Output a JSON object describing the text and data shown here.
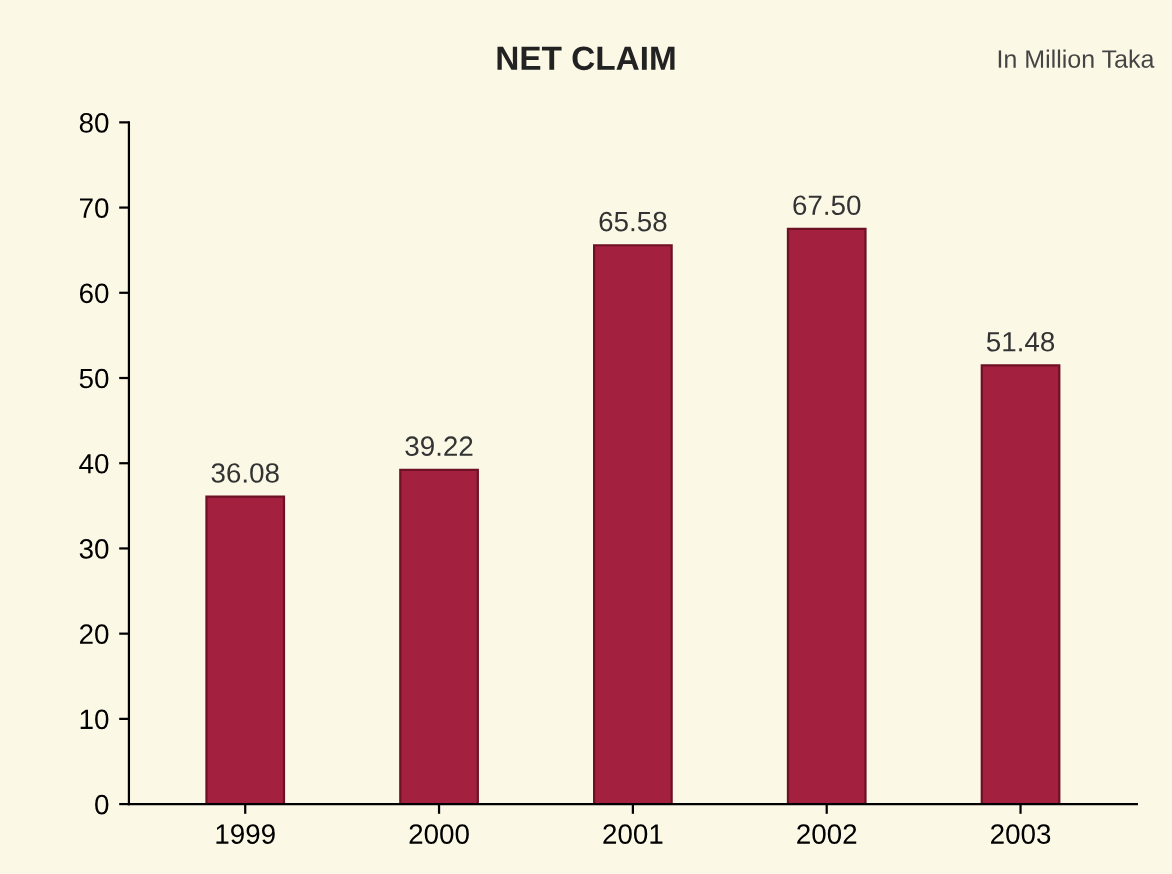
{
  "chart_data": {
    "type": "bar",
    "title": "NET CLAIM",
    "annotations": [
      "In Million Taka"
    ],
    "categories": [
      "1999",
      "2000",
      "2001",
      "2002",
      "2003"
    ],
    "values": [
      36.08,
      39.22,
      65.58,
      67.5,
      51.48
    ],
    "value_labels": [
      "36.08",
      "39.22",
      "65.58",
      "67.50",
      "51.48"
    ],
    "color": "#a3213f",
    "ylim": [
      0,
      80
    ],
    "yticks": [
      0,
      10,
      20,
      30,
      40,
      50,
      60,
      70,
      80
    ],
    "grid": false
  }
}
